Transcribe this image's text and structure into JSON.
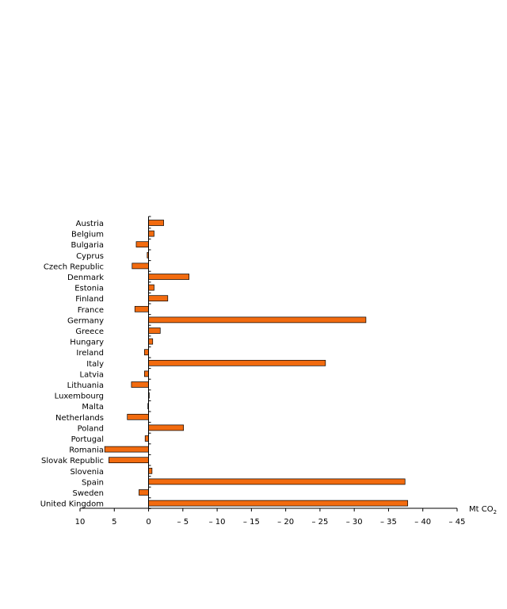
{
  "chart_data": {
    "type": "bar",
    "orientation": "horizontal",
    "categories": [
      "Austria",
      "Belgium",
      "Bulgaria",
      "Cyprus",
      "Czech Republic",
      "Denmark",
      "Estonia",
      "Finland",
      "France",
      "Germany",
      "Greece",
      "Hungary",
      "Ireland",
      "Italy",
      "Latvia",
      "Lithuania",
      "Luxembourg",
      "Malta",
      "Netherlands",
      "Poland",
      "Portugal",
      "Romania",
      "Slovak Republic",
      "Slovenia",
      "Spain",
      "Sweden",
      "United Kingdom"
    ],
    "values": [
      -2.2,
      -0.8,
      1.8,
      0.2,
      2.4,
      -5.9,
      -0.8,
      -2.8,
      2.0,
      -31.7,
      -1.7,
      -0.6,
      0.6,
      -25.8,
      0.6,
      2.5,
      -0.1,
      0.1,
      3.1,
      -5.1,
      0.5,
      6.4,
      5.8,
      -0.5,
      -37.4,
      1.4,
      -37.8
    ],
    "xlim": [
      10,
      -45
    ],
    "xticks": [
      10,
      5,
      0,
      -5,
      -10,
      -15,
      -20,
      -25,
      -30,
      -35,
      -40,
      -45
    ],
    "xtick_labels": [
      "10",
      "5",
      "0",
      "– 5",
      "– 10",
      "– 15",
      "– 20",
      "– 25",
      "– 30",
      "– 35",
      "– 40",
      "– 45"
    ],
    "xlabel": "Mt CO",
    "xlabel_subscript": "2",
    "bar_color": "#f26b0f",
    "bar_edge_color": "#000000"
  }
}
